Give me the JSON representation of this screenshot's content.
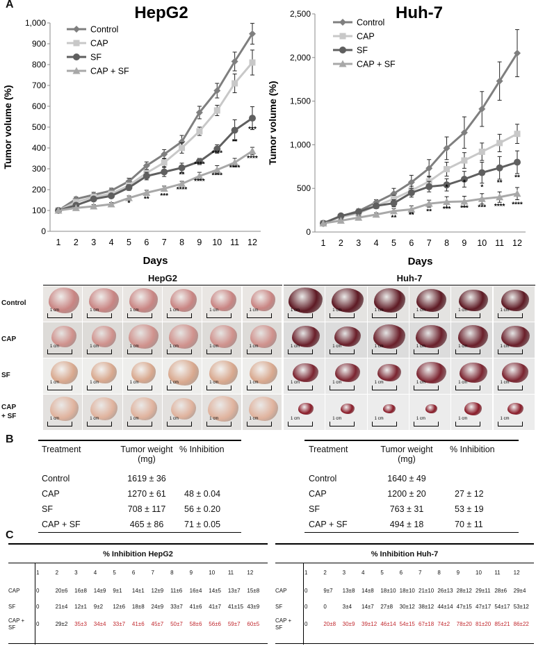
{
  "panel_labels": {
    "a": "A",
    "b": "B",
    "c": "C"
  },
  "colors": {
    "control": "#7f7f7f",
    "cap": "#c8c8c8",
    "sf": "#5f5f5f",
    "capsf": "#a8a8a8",
    "red": "#c0272d"
  },
  "chart_data": [
    {
      "type": "line",
      "title": "HepG2",
      "xlabel": "Days",
      "ylabel": "Tumor volume (%)",
      "x": [
        1,
        2,
        3,
        4,
        5,
        6,
        7,
        8,
        9,
        10,
        11,
        12
      ],
      "ylim": [
        0,
        1000
      ],
      "yticks": [
        0,
        100,
        200,
        300,
        400,
        500,
        600,
        700,
        800,
        900,
        1000
      ],
      "ytick_labels": [
        "0",
        "100",
        "200",
        "300",
        "400",
        "500",
        "600",
        "700",
        "800",
        "900",
        "1,000"
      ],
      "legend": "top-left",
      "series": [
        {
          "name": "Control",
          "marker": "diamond",
          "values": [
            100,
            155,
            175,
            195,
            240,
            315,
            370,
            430,
            570,
            675,
            815,
            948
          ],
          "err": [
            5,
            10,
            12,
            12,
            15,
            18,
            22,
            30,
            30,
            35,
            45,
            50
          ]
        },
        {
          "name": "CAP",
          "marker": "square",
          "values": [
            100,
            140,
            165,
            180,
            220,
            280,
            330,
            400,
            480,
            580,
            710,
            810
          ],
          "err": [
            5,
            8,
            10,
            10,
            14,
            15,
            20,
            25,
            20,
            25,
            45,
            60
          ]
        },
        {
          "name": "SF",
          "marker": "circle",
          "values": [
            100,
            125,
            155,
            170,
            210,
            265,
            285,
            305,
            335,
            395,
            485,
            543
          ],
          "err": [
            5,
            8,
            10,
            10,
            14,
            18,
            22,
            22,
            15,
            20,
            50,
            55
          ]
        },
        {
          "name": "CAP + SF",
          "marker": "triangle",
          "values": [
            100,
            112,
            120,
            130,
            160,
            185,
            205,
            228,
            265,
            295,
            330,
            385
          ],
          "err": [
            5,
            8,
            8,
            8,
            10,
            12,
            12,
            12,
            18,
            20,
            20,
            18
          ]
        }
      ],
      "annotations": [
        {
          "x": 5,
          "y": 125,
          "text": "*"
        },
        {
          "x": 6,
          "y": 145,
          "text": "**"
        },
        {
          "x": 7,
          "y": 160,
          "text": "***"
        },
        {
          "x": 8,
          "y": 262,
          "text": "**"
        },
        {
          "x": 8,
          "y": 190,
          "text": "****"
        },
        {
          "x": 9,
          "y": 312,
          "text": "****"
        },
        {
          "x": 9,
          "y": 230,
          "text": "****"
        },
        {
          "x": 10,
          "y": 365,
          "text": "****"
        },
        {
          "x": 10,
          "y": 258,
          "text": "****"
        },
        {
          "x": 11,
          "y": 420,
          "text": "**"
        },
        {
          "x": 11,
          "y": 295,
          "text": "****"
        },
        {
          "x": 12,
          "y": 480,
          "text": "***"
        },
        {
          "x": 12,
          "y": 340,
          "text": "****"
        }
      ]
    },
    {
      "type": "line",
      "title": "Huh-7",
      "xlabel": "Days",
      "ylabel": "Tumor volume (%)",
      "x": [
        1,
        2,
        3,
        4,
        5,
        6,
        7,
        8,
        9,
        10,
        11,
        12
      ],
      "ylim": [
        0,
        2500
      ],
      "yticks": [
        0,
        500,
        1000,
        1500,
        2000,
        2500
      ],
      "ytick_labels": [
        "0",
        "500",
        "1,000",
        "1,500",
        "2,000",
        "2,500"
      ],
      "legend": "top-left",
      "series": [
        {
          "name": "Control",
          "marker": "diamond",
          "values": [
            100,
            180,
            240,
            340,
            440,
            570,
            730,
            960,
            1140,
            1410,
            1730,
            2050
          ],
          "err": [
            10,
            20,
            25,
            30,
            60,
            80,
            100,
            130,
            180,
            200,
            220,
            270
          ]
        },
        {
          "name": "CAP",
          "marker": "square",
          "values": [
            100,
            170,
            215,
            300,
            380,
            475,
            580,
            720,
            820,
            920,
            1020,
            1125
          ],
          "err": [
            10,
            20,
            25,
            30,
            40,
            50,
            60,
            80,
            90,
            100,
            100,
            110
          ]
        },
        {
          "name": "SF",
          "marker": "circle",
          "values": [
            100,
            185,
            230,
            300,
            330,
            450,
            520,
            540,
            605,
            680,
            735,
            800
          ],
          "err": [
            10,
            20,
            25,
            30,
            40,
            50,
            60,
            70,
            90,
            120,
            130,
            130
          ]
        },
        {
          "name": "CAP + SF",
          "marker": "triangle",
          "values": [
            100,
            130,
            165,
            200,
            240,
            260,
            325,
            345,
            350,
            380,
            400,
            440
          ],
          "err": [
            10,
            15,
            20,
            20,
            30,
            40,
            40,
            60,
            60,
            60,
            60,
            70
          ]
        }
      ],
      "annotations": [
        {
          "x": 5,
          "y": 140,
          "text": "**"
        },
        {
          "x": 6,
          "y": 170,
          "text": "**"
        },
        {
          "x": 7,
          "y": 210,
          "text": "**"
        },
        {
          "x": 8,
          "y": 490,
          "text": "*"
        },
        {
          "x": 8,
          "y": 240,
          "text": "***"
        },
        {
          "x": 9,
          "y": 545,
          "text": "*"
        },
        {
          "x": 9,
          "y": 250,
          "text": "***"
        },
        {
          "x": 10,
          "y": 490,
          "text": "*"
        },
        {
          "x": 10,
          "y": 260,
          "text": "***"
        },
        {
          "x": 11,
          "y": 540,
          "text": "**"
        },
        {
          "x": 11,
          "y": 270,
          "text": "****"
        },
        {
          "x": 12,
          "y": 600,
          "text": "**"
        },
        {
          "x": 12,
          "y": 290,
          "text": "****"
        }
      ]
    }
  ],
  "photos": {
    "hepg2_title": "HepG2",
    "huh7_title": "Huh-7",
    "row_labels": [
      "Control",
      "CAP",
      "SF",
      "CAP\n+ SF"
    ],
    "scale_label": "1 cm"
  },
  "tableB": {
    "headers": [
      "Treatment",
      "Tumor weight\n(mg)",
      "% Inhibition"
    ],
    "hepg2_rows": [
      [
        "Control",
        "1619 ± 36",
        ""
      ],
      [
        "CAP",
        "1270 ± 61",
        "48 ± 0.04"
      ],
      [
        "SF",
        "708 ± 117",
        "56 ± 0.20"
      ],
      [
        "CAP + SF",
        "465 ± 86",
        "71 ± 0.05"
      ]
    ],
    "huh7_rows": [
      [
        "Control",
        "1640 ± 49",
        ""
      ],
      [
        "CAP",
        "1200 ± 20",
        "27 ± 12"
      ],
      [
        "SF",
        "763 ± 31",
        "53 ± 19"
      ],
      [
        "CAP + SF",
        "494 ± 18",
        "70 ± 11"
      ]
    ]
  },
  "tableC": {
    "hepg2_title": "% Inhibition HepG2",
    "huh7_title": "% Inhibition Huh-7",
    "days": [
      "1",
      "2",
      "3",
      "4",
      "5",
      "6",
      "7",
      "8",
      "9",
      "10",
      "11",
      "12"
    ],
    "hepg2_rows": [
      {
        "label": "CAP",
        "values": [
          "0",
          "20±6",
          "16±8",
          "14±9",
          "9±1",
          "14±1",
          "12±9",
          "11±6",
          "16±4",
          "14±5",
          "13±7",
          "15±8"
        ]
      },
      {
        "label": "SF",
        "values": [
          "0",
          "21±4",
          "12±1",
          "9±2",
          "12±6",
          "18±8",
          "24±9",
          "33±7",
          "41±6",
          "41±7",
          "41±15",
          "43±9"
        ]
      },
      {
        "label": "CAP +\nSF",
        "values": [
          "0",
          "29±2",
          "35±3",
          "34±4",
          "33±7",
          "41±6",
          "45±7",
          "50±7",
          "58±6",
          "56±6",
          "59±7",
          "60±5"
        ],
        "red_from": 2
      }
    ],
    "huh7_rows": [
      {
        "label": "CAP",
        "values": [
          "0",
          "9±7",
          "13±8",
          "14±8",
          "18±10",
          "18±10",
          "21±10",
          "26±13",
          "28±12",
          "29±11",
          "28±6",
          "29±4"
        ]
      },
      {
        "label": "SF",
        "values": [
          "0",
          "0",
          "3±4",
          "14±7",
          "27±8",
          "30±12",
          "38±12",
          "44±14",
          "47±15",
          "47±17",
          "54±17",
          "53±12"
        ]
      },
      {
        "label": "CAP +\nSF",
        "values": [
          "0",
          "20±8",
          "30±9",
          "39±12",
          "46±14",
          "54±15",
          "67±18",
          "74±2",
          "78±20",
          "81±20",
          "85±21",
          "86±22"
        ],
        "red_from": 1
      }
    ]
  }
}
